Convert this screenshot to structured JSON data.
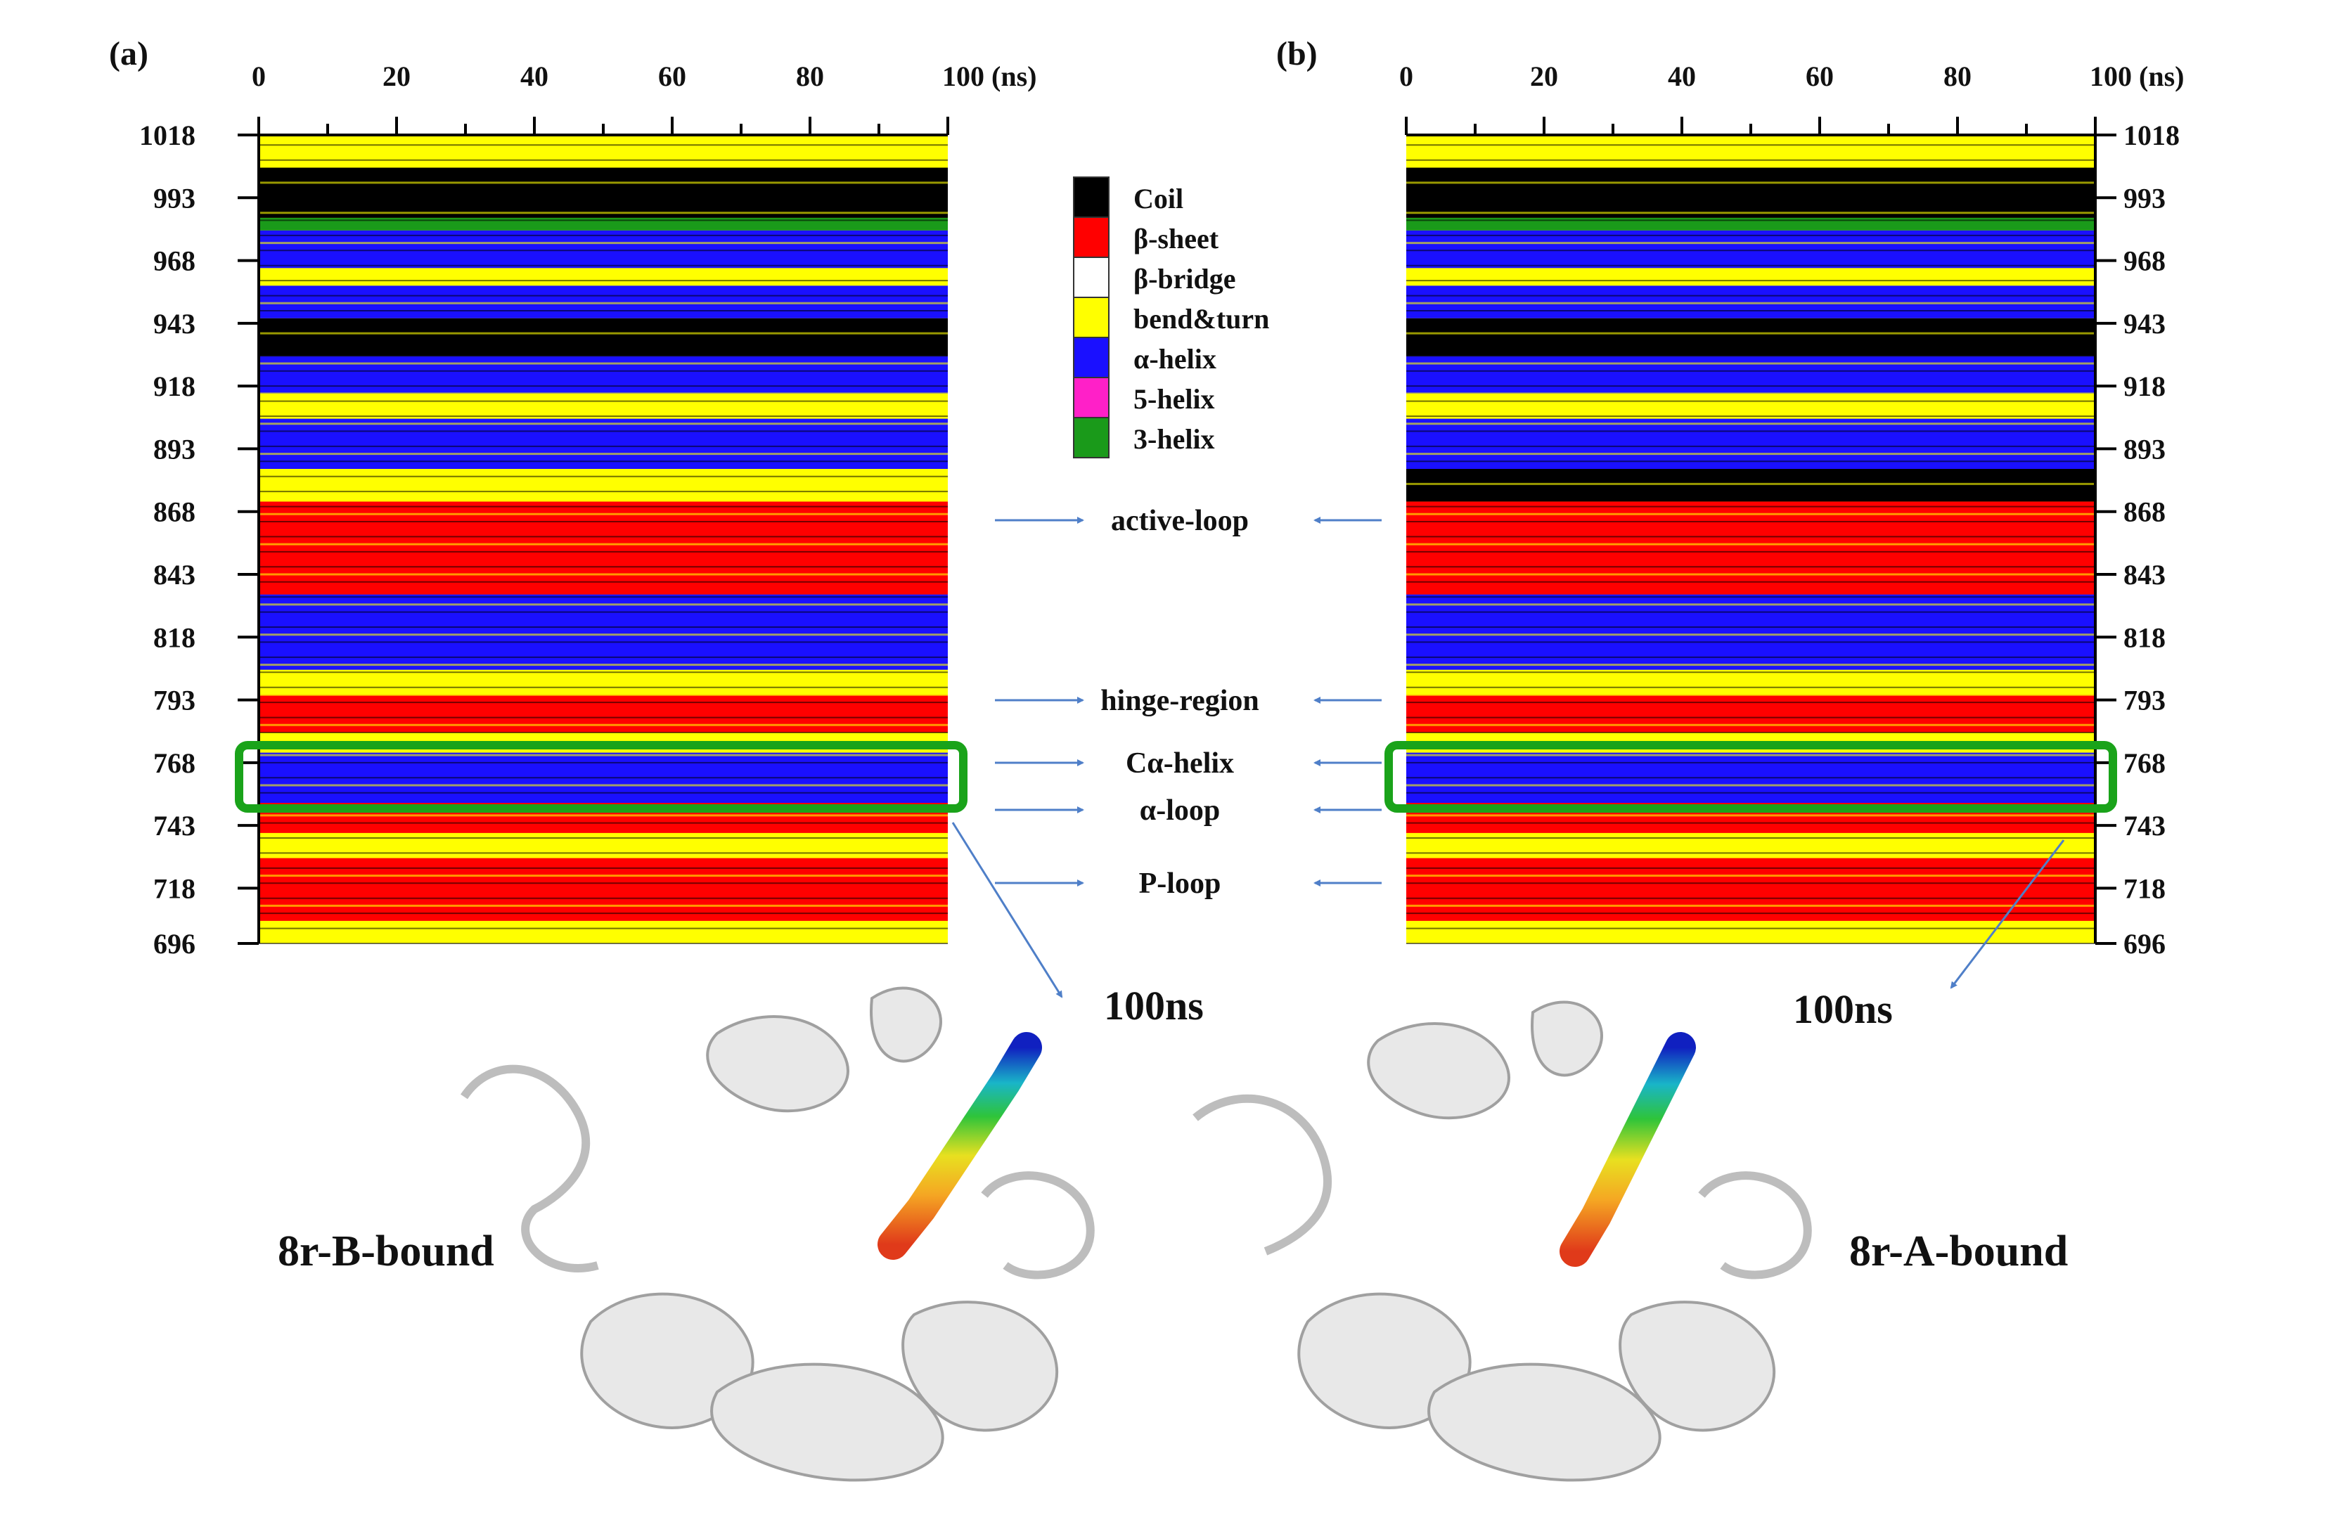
{
  "chart_data": [
    {
      "type": "heatmap",
      "panel_label": "(a)",
      "xlabel": "100 (ns)",
      "x_ticks": [
        "0",
        "20",
        "40",
        "60",
        "80"
      ],
      "xlim": [
        0,
        100
      ],
      "x_unit": "ns",
      "y_ticks": [
        "1018",
        "993",
        "968",
        "943",
        "918",
        "893",
        "868",
        "843",
        "818",
        "793",
        "768",
        "743",
        "718",
        "696"
      ],
      "ylim": [
        696,
        1018
      ],
      "ylabel_side": "left",
      "structure_label": "8r-B-bound",
      "snapshot_label": "100ns",
      "bands": [
        {
          "from": 696,
          "to": 705,
          "ss": "bend&turn"
        },
        {
          "from": 705,
          "to": 730,
          "ss": "β-sheet"
        },
        {
          "from": 730,
          "to": 740,
          "ss": "bend&turn"
        },
        {
          "from": 740,
          "to": 752,
          "ss": "β-sheet"
        },
        {
          "from": 752,
          "to": 772,
          "ss": "α-helix"
        },
        {
          "from": 772,
          "to": 780,
          "ss": "bend&turn"
        },
        {
          "from": 780,
          "to": 795,
          "ss": "β-sheet"
        },
        {
          "from": 795,
          "to": 805,
          "ss": "bend&turn"
        },
        {
          "from": 805,
          "to": 835,
          "ss": "α-helix"
        },
        {
          "from": 835,
          "to": 855,
          "ss": "β-sheet"
        },
        {
          "from": 855,
          "to": 872,
          "ss": "β-sheet"
        },
        {
          "from": 872,
          "to": 885,
          "ss": "bend&turn"
        },
        {
          "from": 885,
          "to": 905,
          "ss": "α-helix"
        },
        {
          "from": 905,
          "to": 915,
          "ss": "bend&turn"
        },
        {
          "from": 915,
          "to": 930,
          "ss": "α-helix"
        },
        {
          "from": 930,
          "to": 945,
          "ss": "Coil"
        },
        {
          "from": 945,
          "to": 958,
          "ss": "α-helix"
        },
        {
          "from": 958,
          "to": 965,
          "ss": "bend&turn"
        },
        {
          "from": 965,
          "to": 980,
          "ss": "α-helix"
        },
        {
          "from": 980,
          "to": 985,
          "ss": "3-helix"
        },
        {
          "from": 985,
          "to": 1005,
          "ss": "Coil"
        },
        {
          "from": 1005,
          "to": 1018,
          "ss": "bend&turn"
        }
      ]
    },
    {
      "type": "heatmap",
      "panel_label": "(b)",
      "xlabel": "100 (ns)",
      "x_ticks": [
        "0",
        "20",
        "40",
        "60",
        "80"
      ],
      "xlim": [
        0,
        100
      ],
      "x_unit": "ns",
      "y_ticks": [
        "1018",
        "993",
        "968",
        "943",
        "918",
        "893",
        "868",
        "843",
        "818",
        "793",
        "768",
        "743",
        "718",
        "696"
      ],
      "ylim": [
        696,
        1018
      ],
      "ylabel_side": "right",
      "structure_label": "8r-A-bound",
      "snapshot_label": "100ns",
      "bands": [
        {
          "from": 696,
          "to": 705,
          "ss": "bend&turn"
        },
        {
          "from": 705,
          "to": 730,
          "ss": "β-sheet"
        },
        {
          "from": 730,
          "to": 740,
          "ss": "bend&turn"
        },
        {
          "from": 740,
          "to": 752,
          "ss": "β-sheet"
        },
        {
          "from": 752,
          "to": 772,
          "ss": "α-helix"
        },
        {
          "from": 772,
          "to": 780,
          "ss": "bend&turn"
        },
        {
          "from": 780,
          "to": 795,
          "ss": "β-sheet"
        },
        {
          "from": 795,
          "to": 805,
          "ss": "bend&turn"
        },
        {
          "from": 805,
          "to": 835,
          "ss": "α-helix"
        },
        {
          "from": 835,
          "to": 855,
          "ss": "β-sheet"
        },
        {
          "from": 855,
          "to": 872,
          "ss": "β-sheet"
        },
        {
          "from": 872,
          "to": 885,
          "ss": "Coil"
        },
        {
          "from": 885,
          "to": 905,
          "ss": "α-helix"
        },
        {
          "from": 905,
          "to": 915,
          "ss": "bend&turn"
        },
        {
          "from": 915,
          "to": 930,
          "ss": "α-helix"
        },
        {
          "from": 930,
          "to": 945,
          "ss": "Coil"
        },
        {
          "from": 945,
          "to": 958,
          "ss": "α-helix"
        },
        {
          "from": 958,
          "to": 965,
          "ss": "bend&turn"
        },
        {
          "from": 965,
          "to": 980,
          "ss": "α-helix"
        },
        {
          "from": 980,
          "to": 985,
          "ss": "3-helix"
        },
        {
          "from": 985,
          "to": 1005,
          "ss": "Coil"
        },
        {
          "from": 1005,
          "to": 1018,
          "ss": "bend&turn"
        }
      ]
    }
  ],
  "legend": [
    {
      "label": "Coil",
      "color": "#000000"
    },
    {
      "label": "β-sheet",
      "color": "#ff0000"
    },
    {
      "label": "β-bridge",
      "color": "#ffffff"
    },
    {
      "label": "bend&turn",
      "color": "#ffff00"
    },
    {
      "label": "α-helix",
      "color": "#1a10ff"
    },
    {
      "label": "5-helix",
      "color": "#ff20c8"
    },
    {
      "label": "3-helix",
      "color": "#1a9a1a"
    }
  ],
  "regions": [
    {
      "label": "active-loop",
      "residue": 865
    },
    {
      "label": "hinge-region",
      "residue": 790
    },
    {
      "label": "Cα-helix",
      "residue": 762
    },
    {
      "label": "α-loop",
      "residue": 748
    },
    {
      "label": "P-loop",
      "residue": 722
    }
  ],
  "highlight": {
    "from": 748,
    "to": 772,
    "color": "#1aa31a"
  },
  "colors": {
    "arrow": "#4f7fc8",
    "ribbon": "#e6e6e6",
    "ribbon_edge": "#9a9a9a"
  }
}
